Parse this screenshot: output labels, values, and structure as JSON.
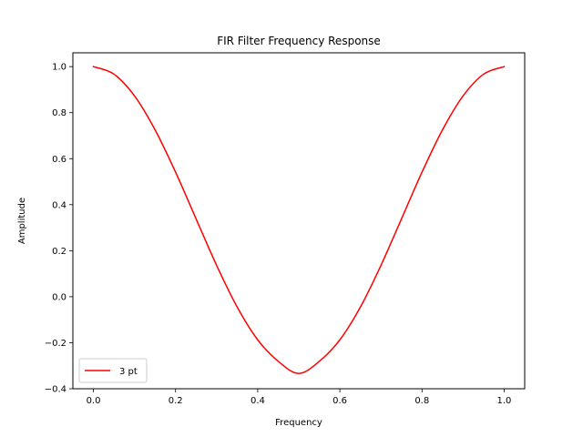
{
  "chart_data": {
    "type": "line",
    "title": "FIR Filter Frequency Response",
    "xlabel": "Frequency",
    "ylabel": "Amplitude",
    "xlim": [
      -0.05,
      1.05
    ],
    "ylim": [
      -0.4,
      1.06
    ],
    "x_ticks": [
      0.0,
      0.2,
      0.4,
      0.6,
      0.8,
      1.0
    ],
    "x_tick_labels": [
      "0.0",
      "0.2",
      "0.4",
      "0.6",
      "0.8",
      "1.0"
    ],
    "y_ticks": [
      -0.4,
      -0.2,
      0.0,
      0.2,
      0.4,
      0.6,
      0.8,
      1.0
    ],
    "y_tick_labels": [
      "−0.4",
      "−0.2",
      "0.0",
      "0.2",
      "0.4",
      "0.6",
      "0.8",
      "1.0"
    ],
    "grid": false,
    "legend_position": "lower-left",
    "series": [
      {
        "name": "3 pt",
        "color": "#ff0000",
        "x": [
          0.0,
          0.05,
          0.1,
          0.15,
          0.2,
          0.25,
          0.3,
          0.35,
          0.4,
          0.45,
          0.5,
          0.55,
          0.6,
          0.65,
          0.7,
          0.75,
          0.8,
          0.85,
          0.9,
          0.95,
          1.0
        ],
        "y": [
          1.0,
          0.9673,
          0.8727,
          0.7257,
          0.5413,
          0.3381,
          0.1361,
          -0.0449,
          -0.1873,
          -0.2807,
          -0.3333,
          -0.2807,
          -0.1873,
          -0.0449,
          0.1361,
          0.3381,
          0.5413,
          0.7257,
          0.8727,
          0.9673,
          1.0
        ]
      }
    ]
  }
}
